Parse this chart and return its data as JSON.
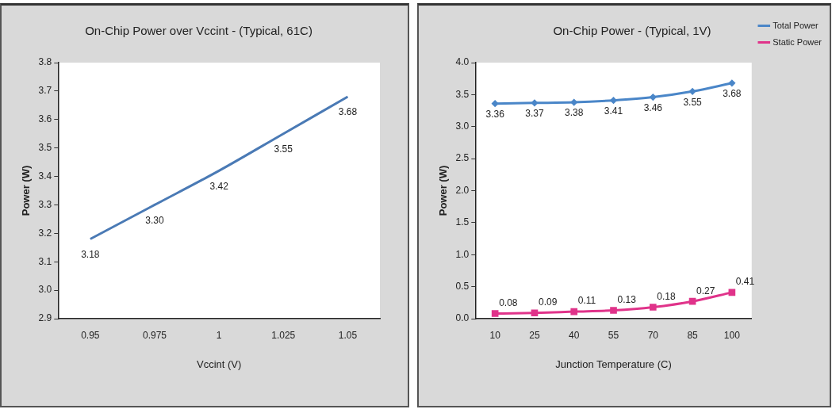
{
  "chart_data": [
    {
      "type": "line",
      "title": "On-Chip Power over Vccint - (Typical, 61C)",
      "xlabel": "Vccint (V)",
      "ylabel": "Power (W)",
      "categories": [
        "0.95",
        "0.975",
        "1",
        "1.025",
        "1.05"
      ],
      "series": [
        {
          "color": "#4a7ab5",
          "values": [
            3.18,
            3.3,
            3.42,
            3.55,
            3.68
          ],
          "value_labels": [
            "3.18",
            "3.30",
            "3.42",
            "3.55",
            "3.68"
          ]
        }
      ],
      "ylim": [
        2.9,
        3.8
      ],
      "yticks": [
        {
          "value": 2.9,
          "label": "2.9"
        },
        {
          "value": 3.0,
          "label": "3.0"
        },
        {
          "value": 3.1,
          "label": "3.1"
        },
        {
          "value": 3.2,
          "label": "3.2"
        },
        {
          "value": 3.3,
          "label": "3.3"
        },
        {
          "value": 3.4,
          "label": "3.4"
        },
        {
          "value": 3.5,
          "label": "3.5"
        },
        {
          "value": 3.6,
          "label": "3.6"
        },
        {
          "value": 3.7,
          "label": "3.7"
        },
        {
          "value": 3.8,
          "label": "3.8"
        }
      ],
      "grid": false,
      "legend": false,
      "marker": "none"
    },
    {
      "type": "line",
      "title": "On-Chip Power - (Typical, 1V)",
      "xlabel": "Junction Temperature (C)",
      "ylabel": "Power (W)",
      "categories": [
        "10",
        "25",
        "40",
        "55",
        "70",
        "85",
        "100"
      ],
      "series": [
        {
          "name": "Total Power",
          "color": "#4a86c8",
          "marker": "diamond",
          "values": [
            3.36,
            3.37,
            3.38,
            3.41,
            3.46,
            3.55,
            3.68
          ]
        },
        {
          "name": "Static Power",
          "color": "#e0338a",
          "marker": "square",
          "values": [
            0.08,
            0.09,
            0.11,
            0.13,
            0.18,
            0.27,
            0.41
          ]
        }
      ],
      "data_labels": true,
      "ylim": [
        0,
        4
      ],
      "yticks": [
        {
          "value": 0,
          "label": "0.0"
        },
        {
          "value": 0.5,
          "label": "0.5"
        },
        {
          "value": 1,
          "label": "1.0"
        },
        {
          "value": 1.5,
          "label": "1.5"
        },
        {
          "value": 2,
          "label": "2.0"
        },
        {
          "value": 2.5,
          "label": "2.5"
        },
        {
          "value": 3,
          "label": "3.0"
        },
        {
          "value": 3.5,
          "label": "3.5"
        },
        {
          "value": 4,
          "label": "4.0"
        }
      ],
      "grid": false,
      "legend": "top right"
    }
  ]
}
